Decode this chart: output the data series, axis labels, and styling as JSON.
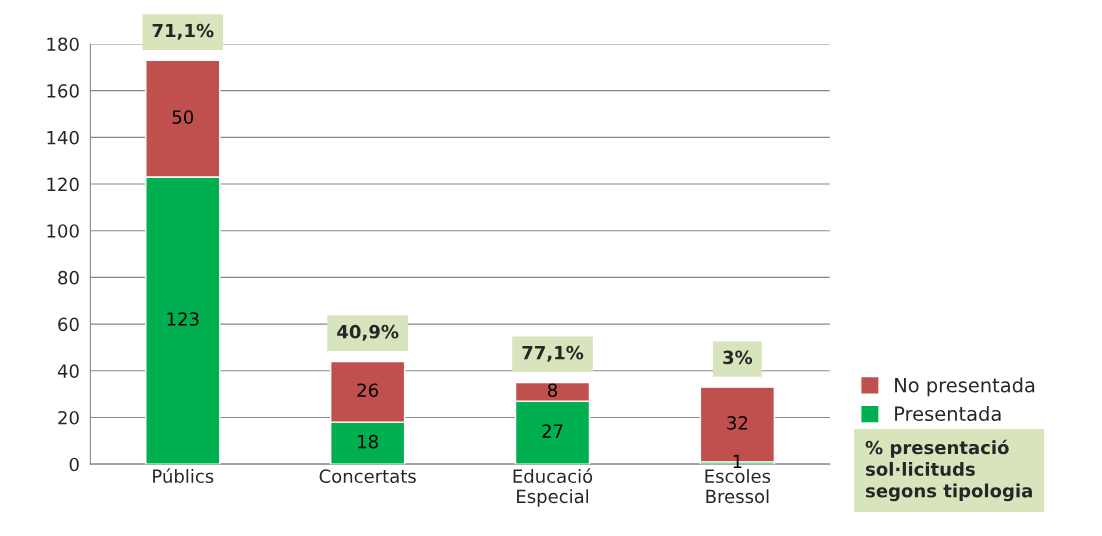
{
  "chart_data": {
    "type": "bar",
    "stacked": true,
    "categories": [
      "Públics",
      "Concertats",
      "Educació\nEspecial",
      "Escoles\nBressol"
    ],
    "series": [
      {
        "name": "Presentada",
        "color": "#00b050",
        "values": [
          123,
          18,
          27,
          1
        ]
      },
      {
        "name": "No presentada",
        "color": "#c0504d",
        "values": [
          50,
          26,
          8,
          32
        ]
      }
    ],
    "ylim": [
      0,
      180
    ],
    "yticks": [
      0,
      20,
      40,
      60,
      80,
      100,
      120,
      140,
      160,
      180
    ],
    "grid": "y",
    "legend": "right",
    "data_labels": true,
    "annotations": [
      "71,1%",
      "40,9%",
      "77,1%",
      "3%",
      "% presentació\nsol·licituds\nsegons tipologia"
    ]
  }
}
